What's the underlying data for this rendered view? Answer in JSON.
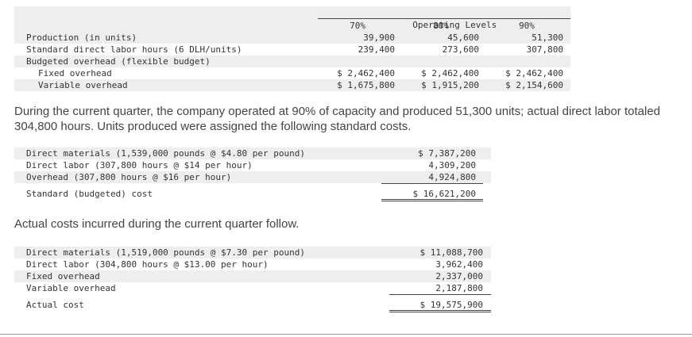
{
  "levels_table": {
    "header": "Operating Levels",
    "levels": [
      "70%",
      "80%",
      "90%"
    ],
    "rows": [
      {
        "label": "Production (in units)",
        "values": [
          "39,900",
          "45,600",
          "51,300"
        ]
      },
      {
        "label": "Standard direct labor hours (6 DLH/units)",
        "values": [
          "239,400",
          "273,600",
          "307,800"
        ]
      },
      {
        "label": "Budgeted overhead (flexible budget)",
        "values": [
          "",
          "",
          ""
        ]
      },
      {
        "label": "Fixed overhead",
        "values": [
          "$ 2,462,400",
          "$ 2,462,400",
          "$ 2,462,400"
        ]
      },
      {
        "label": "Variable overhead",
        "values": [
          "$ 1,675,800",
          "$ 1,915,200",
          "$ 2,154,600"
        ]
      }
    ]
  },
  "paragraph1": "During the current quarter, the company operated at 90% of capacity and produced 51,300 units; actual direct labor totaled 304,800 hours. Units produced were assigned the following standard costs.",
  "standard_costs": {
    "rows": [
      {
        "label": "Direct materials (1,539,000 pounds @ $4.80 per pound)",
        "value": "$ 7,387,200"
      },
      {
        "label": "Direct labor (307,800 hours @ $14 per hour)",
        "value": "4,309,200"
      },
      {
        "label": "Overhead (307,800 hours @ $16 per hour)",
        "value": "4,924,800"
      }
    ],
    "total_label": "Standard (budgeted) cost",
    "total_value": "$ 16,621,200"
  },
  "paragraph2": "Actual costs incurred during the current quarter follow.",
  "actual_costs": {
    "rows": [
      {
        "label": "Direct materials (1,519,000 pounds @ $7.30 per pound)",
        "value": "$ 11,088,700"
      },
      {
        "label": "Direct labor (304,800 hours @ $13.00 per hour)",
        "value": "3,962,400"
      },
      {
        "label": "Fixed overhead",
        "value": "2,337,000"
      },
      {
        "label": "Variable overhead",
        "value": "2,187,800"
      }
    ],
    "total_label": "Actual cost",
    "total_value": "$ 19,575,900"
  }
}
